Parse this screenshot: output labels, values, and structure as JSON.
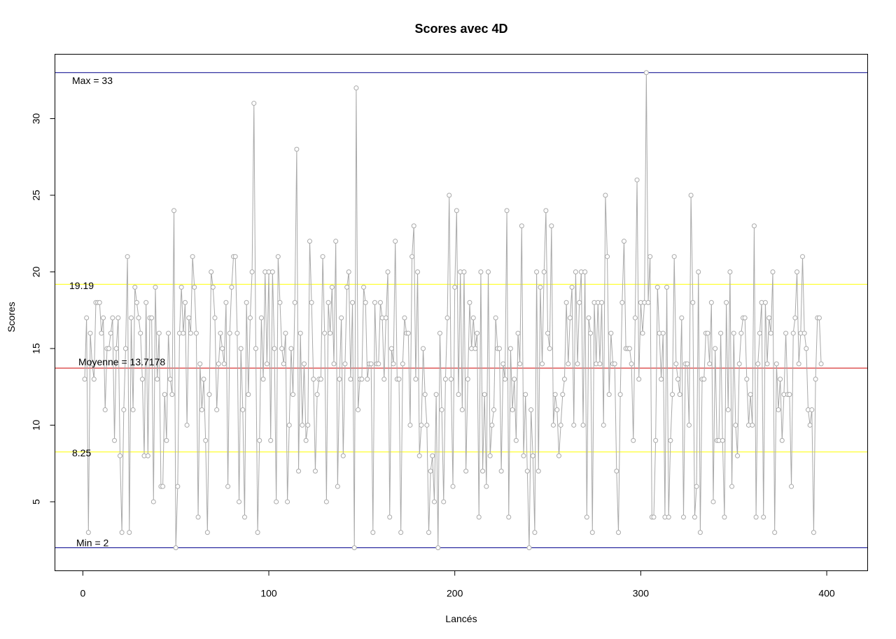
{
  "chart_data": {
    "type": "line",
    "title": "Scores avec 4D",
    "xlabel": "Lancés",
    "ylabel": "Scores",
    "xlim": [
      -15,
      422
    ],
    "ylim": [
      0.5,
      34.2
    ],
    "xticks": [
      0,
      100,
      200,
      300,
      400
    ],
    "yticks": [
      5,
      10,
      15,
      20,
      25,
      30
    ],
    "grid": false,
    "series": [
      {
        "color": "#a9a9a9",
        "marker": "open-circle",
        "y": [
          13,
          17,
          3,
          16,
          14,
          13,
          18,
          18,
          18,
          16,
          17,
          11,
          15,
          15,
          16,
          17,
          9,
          15,
          17,
          8,
          3,
          11,
          15,
          21,
          3,
          17,
          11,
          19,
          18,
          17,
          16,
          13,
          8,
          18,
          8,
          17,
          17,
          5,
          19,
          13,
          16,
          6,
          6,
          12,
          9,
          16,
          13,
          12,
          24,
          2,
          6,
          16,
          19,
          16,
          18,
          10,
          17,
          16,
          21,
          19,
          16,
          4,
          14,
          11,
          13,
          9,
          3,
          12,
          20,
          19,
          17,
          11,
          14,
          16,
          15,
          14,
          18,
          6,
          16,
          19,
          21,
          21,
          16,
          5,
          15,
          11,
          4,
          18,
          12,
          17,
          20,
          31,
          15,
          3,
          9,
          17,
          13,
          20,
          14,
          20,
          9,
          20,
          15,
          5,
          21,
          18,
          15,
          14,
          16,
          5,
          10,
          15,
          12,
          18,
          28,
          7,
          16,
          10,
          14,
          9,
          10,
          22,
          18,
          13,
          7,
          12,
          13,
          13,
          21,
          16,
          5,
          18,
          16,
          19,
          14,
          22,
          6,
          13,
          17,
          8,
          14,
          19,
          20,
          13,
          18,
          2,
          32,
          11,
          13,
          13,
          19,
          18,
          13,
          14,
          14,
          3,
          18,
          14,
          14,
          18,
          17,
          13,
          17,
          20,
          4,
          15,
          14,
          22,
          13,
          13,
          3,
          14,
          17,
          16,
          16,
          10,
          21,
          23,
          13,
          20,
          8,
          10,
          15,
          12,
          10,
          3,
          7,
          8,
          5,
          12,
          2,
          16,
          11,
          5,
          13,
          17,
          25,
          13,
          6,
          19,
          24,
          12,
          20,
          11,
          20,
          7,
          13,
          18,
          15,
          17,
          15,
          16,
          4,
          20,
          7,
          12,
          6,
          20,
          8,
          10,
          11,
          17,
          15,
          15,
          7,
          14,
          13,
          24,
          4,
          15,
          11,
          13,
          9,
          16,
          14,
          23,
          8,
          12,
          7,
          2,
          11,
          8,
          3,
          20,
          7,
          19,
          14,
          20,
          24,
          16,
          15,
          23,
          10,
          12,
          11,
          8,
          10,
          12,
          13,
          18,
          14,
          17,
          19,
          10,
          20,
          14,
          18,
          20,
          10,
          20,
          4,
          17,
          16,
          3,
          18,
          14,
          18,
          14,
          18,
          10,
          25,
          21,
          12,
          16,
          14,
          14,
          7,
          3,
          12,
          18,
          22,
          15,
          15,
          15,
          14,
          9,
          17,
          26,
          13,
          18,
          16,
          18,
          33,
          18,
          21,
          4,
          4,
          9,
          19,
          16,
          13,
          16,
          4,
          19,
          4,
          9,
          12,
          21,
          14,
          13,
          12,
          17,
          4,
          14,
          14,
          10,
          25,
          18,
          4,
          6,
          20,
          3,
          13,
          13,
          16,
          16,
          14,
          18,
          5,
          15,
          9,
          9,
          16,
          9,
          4,
          18,
          11,
          20,
          6,
          16,
          10,
          8,
          14,
          16,
          17,
          17,
          13,
          10,
          12,
          10,
          23,
          4,
          14,
          16,
          18,
          4,
          18,
          14,
          17,
          16,
          20,
          3,
          14,
          11,
          13,
          9,
          12,
          16,
          12,
          12,
          6,
          16,
          17,
          20,
          14,
          16,
          21,
          16,
          15,
          11,
          10,
          11,
          3,
          13,
          17,
          17,
          14
        ]
      }
    ],
    "hlines": [
      {
        "y": 33,
        "color": "#00008b",
        "label": "Max =  33"
      },
      {
        "y": 19.19,
        "color": "#ffff00",
        "label": "19.19"
      },
      {
        "y": 13.7178,
        "color": "#cc0000",
        "label": "Moyenne =  13.7178"
      },
      {
        "y": 8.25,
        "color": "#ffff00",
        "label": "8.25"
      },
      {
        "y": 2,
        "color": "#00008b",
        "label": "Min =  2"
      }
    ]
  }
}
